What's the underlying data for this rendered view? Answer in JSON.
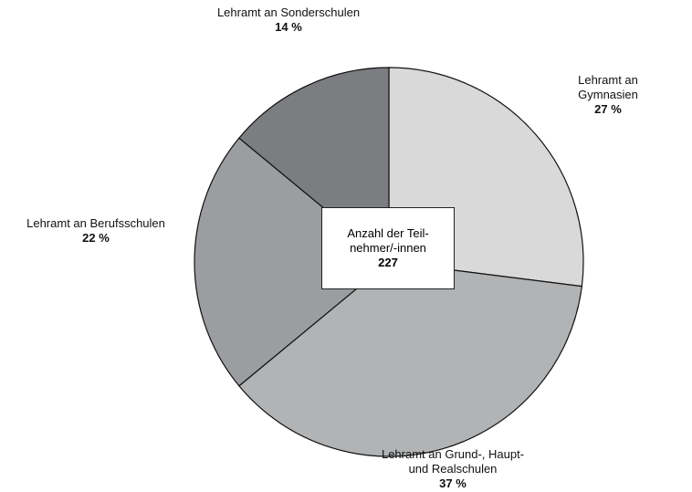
{
  "chart_data": {
    "type": "pie",
    "categories": [
      "Lehramt an Gymnasien",
      "Lehramt an Grund-, Haupt-\nund Realschulen",
      "Lehramt an Berufsschulen",
      "Lehramt an Sonderschulen"
    ],
    "values": [
      27,
      37,
      22,
      14
    ],
    "value_labels": [
      "27 %",
      "37 %",
      "22 %",
      "14 %"
    ],
    "colors": [
      "#d9d9d9",
      "#b1b3b5",
      "#9b9da0",
      "#7b7d81"
    ],
    "center_label": "Anzahl der Teil-\nnehmer/-innen",
    "total": 227
  }
}
